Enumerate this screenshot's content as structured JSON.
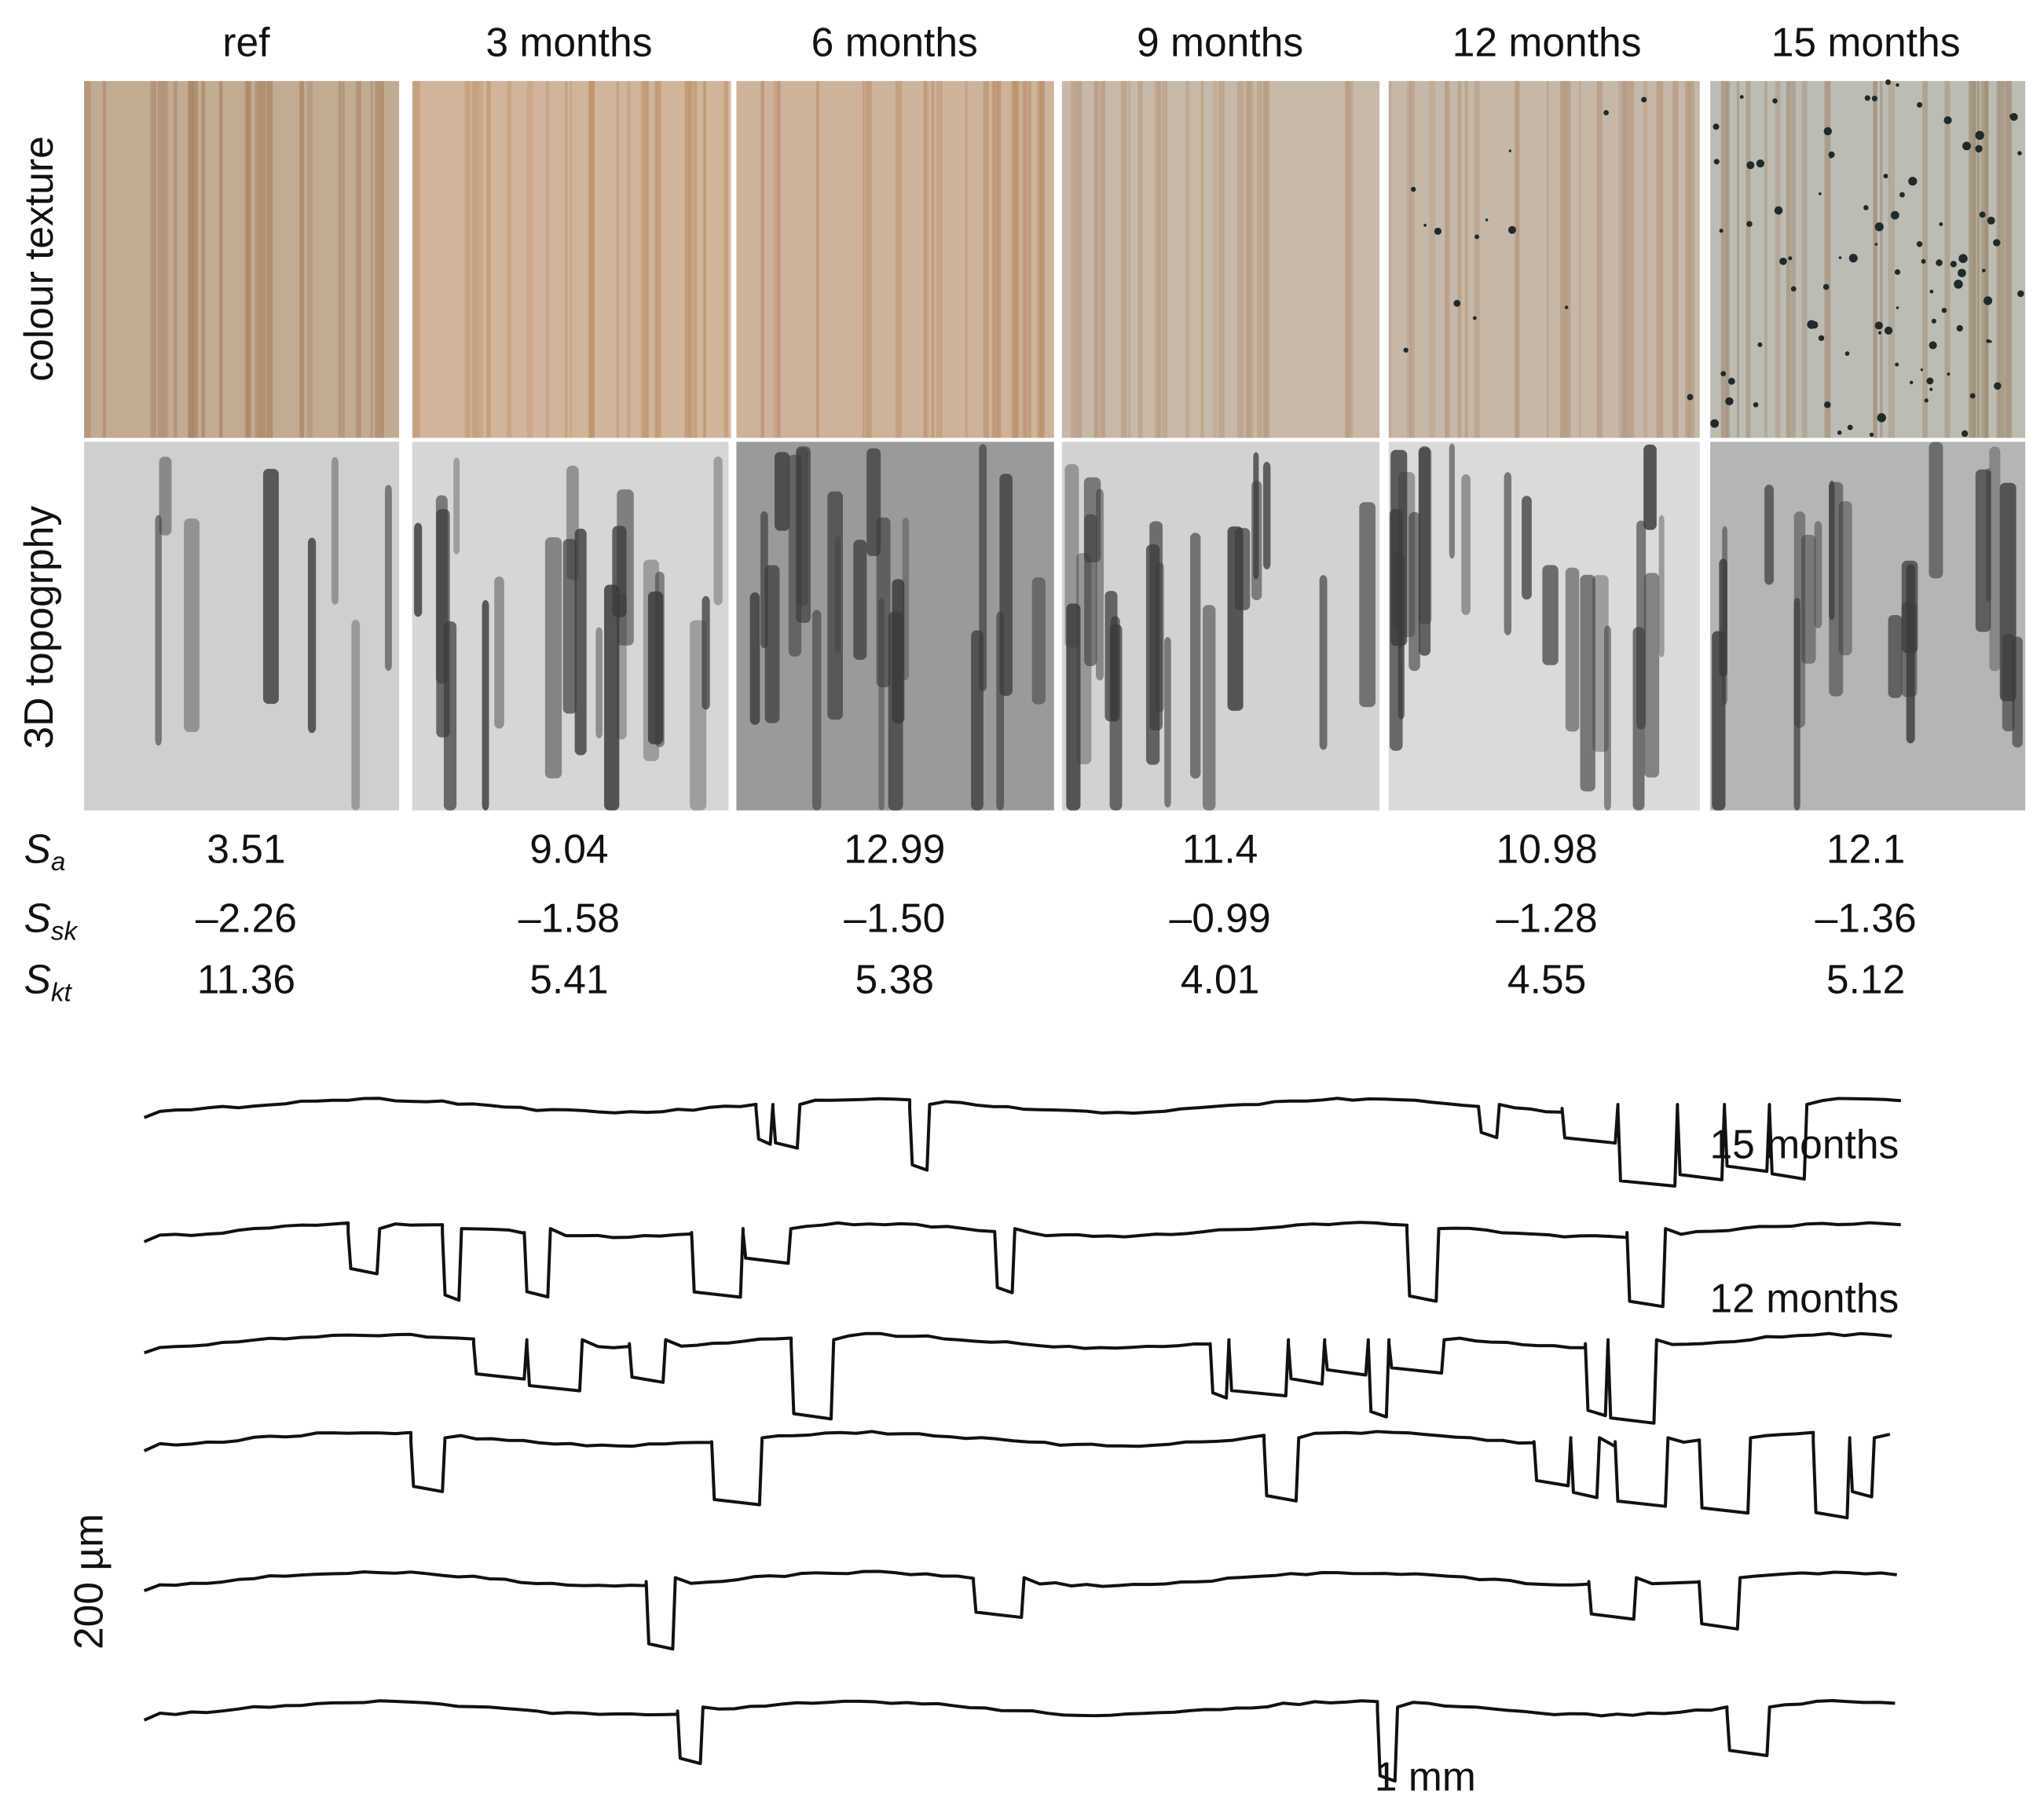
{
  "columns": [
    "ref",
    "3 months",
    "6 months",
    "9 months",
    "12 months",
    "15 months"
  ],
  "rows": [
    "colour texture",
    "3D topogrphy"
  ],
  "parameters": [
    {
      "symbol": "S",
      "subscript": "a",
      "values": [
        "3.51",
        "9.04",
        "12.99",
        "11.4",
        "10.98",
        "12.1"
      ]
    },
    {
      "symbol": "S",
      "subscript": "sk",
      "values": [
        "–2.26",
        "–1.58",
        "–1.50",
        "–0.99",
        "–1.28",
        "–1.36"
      ]
    },
    {
      "symbol": "S",
      "subscript": "kt",
      "values": [
        "11.36",
        "5.41",
        "5.38",
        "4.01",
        "4.55",
        "5.12"
      ]
    }
  ],
  "profile_labels": [
    "15 months",
    "12 months"
  ],
  "scale": {
    "vertical": "200 µm",
    "horizontal": "1 mm"
  }
}
